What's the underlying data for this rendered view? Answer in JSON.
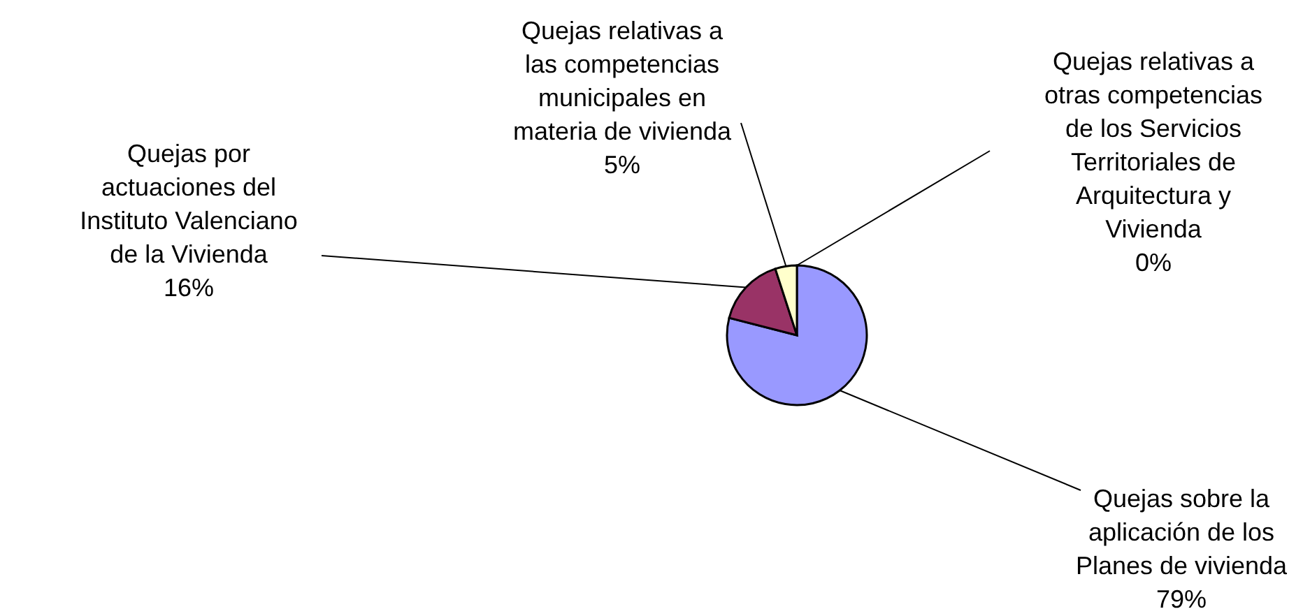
{
  "chart_data": {
    "type": "pie",
    "categories": [
      "Quejas sobre la aplicación de los Planes de vivienda",
      "Quejas por actuaciones del Instituto Valenciano de la Vivienda",
      "Quejas relativas a las competencias municipales en materia de vivienda",
      "Quejas relativas a otras competencias de los Servicios Territoriales de Arquitectura y Vivienda"
    ],
    "values": [
      79,
      16,
      5,
      0
    ],
    "value_labels": [
      "79%",
      "16%",
      "5%",
      "0%"
    ],
    "colors": [
      "#9999ff",
      "#993366",
      "#ffffcc",
      "#333300"
    ],
    "legend": false
  }
}
